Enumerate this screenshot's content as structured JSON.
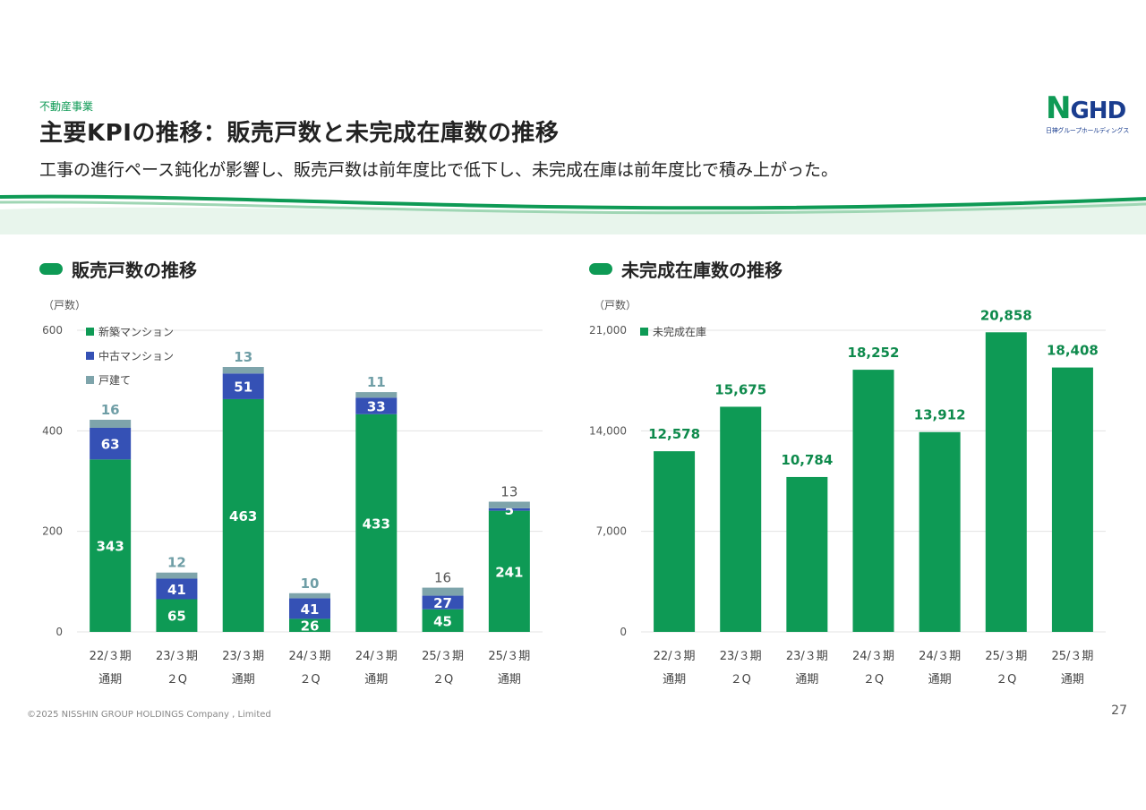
{
  "header": {
    "section_label": "不動産事業",
    "title": "主要KPIの推移：販売戸数と未完成在庫数の推移",
    "subtitle": "工事の進行ペース鈍化が影響し、販売戸数は前年度比で低下し、未完成在庫は前年度比で積み上がった。"
  },
  "logo": {
    "mark": "NGHD",
    "mark_first": "N",
    "mark_rest": "GHD",
    "sub": "日神グループホールディングス"
  },
  "colors": {
    "green": "#0e9a55",
    "blue": "#3551b5",
    "gray": "#7ea4ab"
  },
  "chart_data": [
    {
      "type": "bar",
      "stacked": true,
      "heading": "販売戸数の推移",
      "unit_label": "（戸数）",
      "categories": [
        [
          "22/３期",
          "通期"
        ],
        [
          "23/３期",
          "２Q"
        ],
        [
          "23/３期",
          "通期"
        ],
        [
          "24/３期",
          "２Q"
        ],
        [
          "24/３期",
          "通期"
        ],
        [
          "25/３期",
          "２Q"
        ],
        [
          "25/３期",
          "通期"
        ]
      ],
      "series": [
        {
          "name": "新築マンション",
          "color": "#0e9a55",
          "values": [
            343,
            65,
            463,
            26,
            433,
            45,
            241
          ]
        },
        {
          "name": "中古マンション",
          "color": "#3551b5",
          "values": [
            63,
            41,
            51,
            41,
            33,
            27,
            5
          ]
        },
        {
          "name": "戸建て",
          "color": "#7ea4ab",
          "values": [
            16,
            12,
            13,
            10,
            11,
            16,
            13
          ]
        }
      ],
      "top_label_colors": [
        "#6f9ea6",
        "#6f9ea6",
        "#6f9ea6",
        "#6f9ea6",
        "#6f9ea6",
        "#555555",
        "#555555"
      ],
      "ylim": [
        0,
        600
      ],
      "yticks": [
        0,
        200,
        400,
        600
      ],
      "legend_position": "top-left",
      "grid": true
    },
    {
      "type": "bar",
      "heading": "未完成在庫数の推移",
      "unit_label": "（戸数）",
      "categories": [
        [
          "22/３期",
          "通期"
        ],
        [
          "23/３期",
          "２Q"
        ],
        [
          "23/３期",
          "通期"
        ],
        [
          "24/３期",
          "２Q"
        ],
        [
          "24/３期",
          "通期"
        ],
        [
          "25/３期",
          "２Q"
        ],
        [
          "25/３期",
          "通期"
        ]
      ],
      "series": [
        {
          "name": "未完成在庫",
          "color": "#0e9a55",
          "values": [
            12578,
            15675,
            10784,
            18252,
            13912,
            20858,
            18408
          ]
        }
      ],
      "value_labels": [
        "12,578",
        "15,675",
        "10,784",
        "18,252",
        "13,912",
        "20,858",
        "18,408"
      ],
      "ylim": [
        0,
        21000
      ],
      "yticks": [
        0,
        7000,
        14000,
        21000
      ],
      "ytick_labels": [
        "0",
        "7,000",
        "14,000",
        "21,000"
      ],
      "legend_position": "top-left",
      "grid": true
    }
  ],
  "footer": {
    "copyright": "©2025 NISSHIN GROUP HOLDINGS Company , Limited",
    "page": "27"
  }
}
